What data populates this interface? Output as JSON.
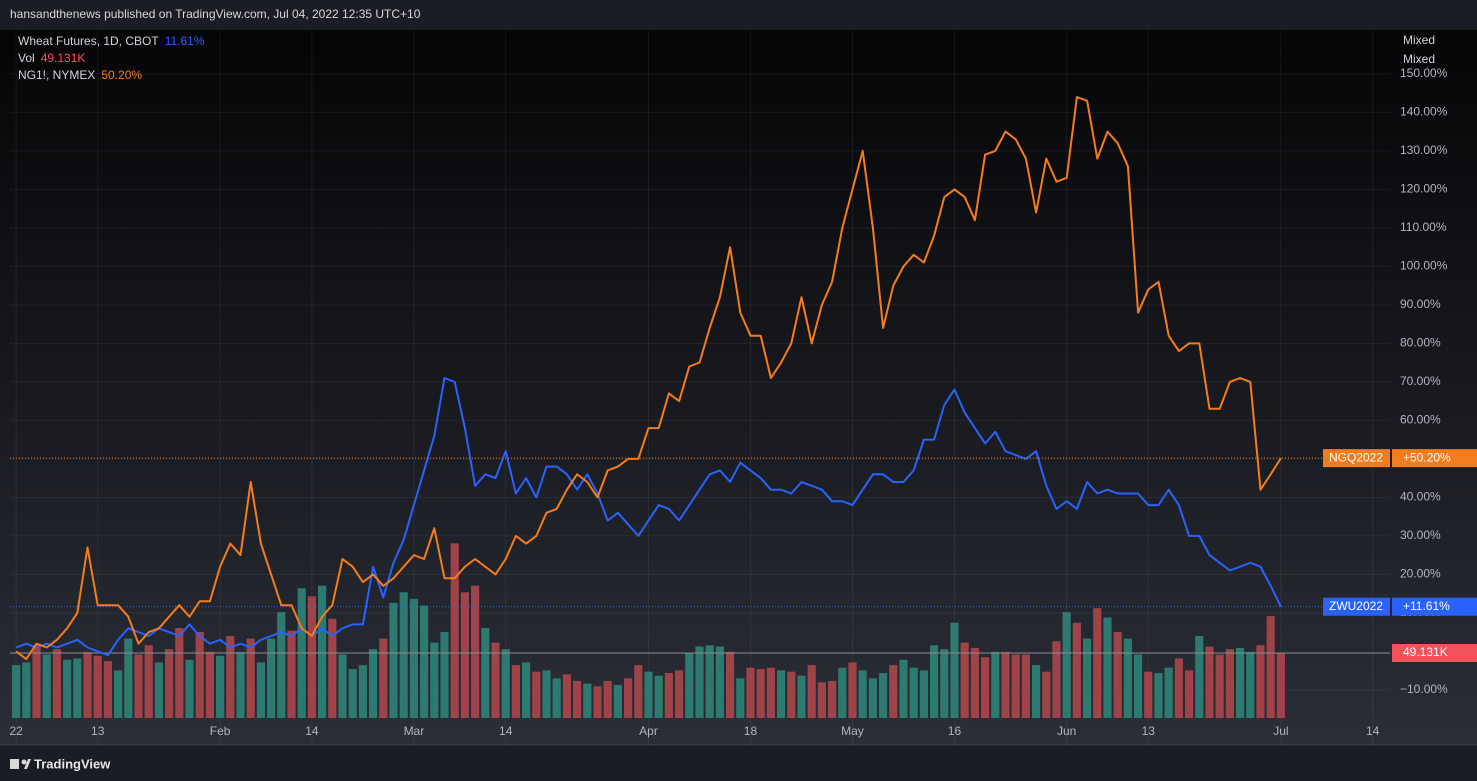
{
  "header": "hansandthenews published on TradingView.com, Jul 04, 2022 12:35 UTC+10",
  "footer": "TradingView",
  "chart_data": {
    "type": "line",
    "scale_labels": [
      "Mixed",
      "Mixed"
    ],
    "x": [
      0,
      1,
      2,
      3,
      4,
      5,
      6,
      7,
      8,
      9,
      10,
      11,
      12,
      13,
      14,
      15,
      16,
      17,
      18,
      19,
      20,
      21,
      22,
      23,
      24,
      25,
      26,
      27,
      28,
      29,
      30,
      31,
      32,
      33,
      34,
      35,
      36,
      37,
      38,
      39,
      40,
      41,
      42,
      43,
      44,
      45,
      46,
      47,
      48,
      49,
      50,
      51,
      52,
      53,
      54,
      55,
      56,
      57,
      58,
      59,
      60,
      61,
      62,
      63,
      64,
      65,
      66,
      67,
      68,
      69,
      70,
      71,
      72,
      73,
      74,
      75,
      76,
      77,
      78,
      79,
      80,
      81,
      82,
      83,
      84,
      85,
      86,
      87,
      88,
      89,
      90,
      91,
      92,
      93,
      94,
      95,
      96,
      97,
      98,
      99,
      100,
      101,
      102,
      103,
      104,
      105,
      106,
      107,
      108,
      109,
      110,
      111,
      112,
      113,
      114,
      115,
      116,
      117,
      118,
      119,
      120,
      121,
      122,
      123,
      124
    ],
    "xlim": [
      -0.6,
      134.7
    ],
    "xticks": [
      {
        "value": 0,
        "label": "22"
      },
      {
        "value": 8,
        "label": "13"
      },
      {
        "value": 20,
        "label": "Feb"
      },
      {
        "value": 29,
        "label": "14"
      },
      {
        "value": 39,
        "label": "Mar"
      },
      {
        "value": 48,
        "label": "14"
      },
      {
        "value": 62,
        "label": "Apr"
      },
      {
        "value": 72,
        "label": "18"
      },
      {
        "value": 82,
        "label": "May"
      },
      {
        "value": 92,
        "label": "16"
      },
      {
        "value": 103,
        "label": "Jun"
      },
      {
        "value": 111,
        "label": "13"
      },
      {
        "value": 124,
        "label": "Jul"
      },
      {
        "value": 133,
        "label": "14"
      }
    ],
    "ylim": [
      -17.3,
      161.4
    ],
    "yticks": [
      {
        "value": -10,
        "label": "−10.00%"
      },
      {
        "value": 10,
        "label": "10.00%"
      },
      {
        "value": 20,
        "label": "20.00%"
      },
      {
        "value": 30,
        "label": "30.00%"
      },
      {
        "value": 40,
        "label": "40.00%"
      },
      {
        "value": 50,
        "label": "50.00%"
      },
      {
        "value": 60,
        "label": "60.00%"
      },
      {
        "value": 70,
        "label": "70.00%"
      },
      {
        "value": 80,
        "label": "80.00%"
      },
      {
        "value": 90,
        "label": "90.00%"
      },
      {
        "value": 100,
        "label": "100.00%"
      },
      {
        "value": 110,
        "label": "110.00%"
      },
      {
        "value": 120,
        "label": "120.00%"
      },
      {
        "value": 130,
        "label": "130.00%"
      },
      {
        "value": 140,
        "label": "140.00%"
      },
      {
        "value": 150,
        "label": "150.00%"
      }
    ],
    "grid": true,
    "vol_ylim": [
      0,
      520
    ],
    "series": [
      {
        "name": "Wheat Futures, 1D, CBOT",
        "color": "#2962ff",
        "last_label": "11.61%",
        "badge": "ZWU2022",
        "badge_value": "+11.61%",
        "values": [
          1,
          2,
          1,
          2,
          1,
          2,
          3,
          1,
          0,
          -1,
          3,
          6,
          5,
          4,
          6,
          5,
          4,
          7,
          4,
          2,
          3,
          1,
          2,
          1,
          3,
          4,
          5,
          4,
          6,
          4,
          6,
          4,
          6,
          7,
          7,
          22,
          14,
          23,
          29,
          38,
          47,
          56,
          71,
          70,
          58,
          43,
          46,
          45,
          52,
          41,
          45,
          40,
          48,
          48,
          46,
          42,
          46,
          41,
          34,
          36,
          33,
          30,
          34,
          38,
          37,
          34,
          38,
          42,
          46,
          47,
          44,
          49,
          47,
          45,
          42,
          42,
          41,
          44,
          43,
          42,
          39,
          39,
          38,
          42,
          46,
          46,
          44,
          44,
          47,
          55,
          55,
          64,
          68,
          62,
          58,
          54,
          57,
          52,
          51,
          50,
          52,
          43,
          37,
          39,
          37,
          44,
          41,
          42,
          41,
          41,
          41,
          38,
          38,
          42,
          38,
          30,
          30,
          25,
          23,
          21,
          22,
          23,
          22,
          17,
          11.61
        ]
      },
      {
        "name": "NG1!, NYMEX",
        "color": "#f57c1a",
        "last_label": "50.20%",
        "badge": "NGQ2022",
        "badge_value": "+50.20%",
        "values": [
          0,
          -2,
          2,
          1,
          3,
          6,
          10,
          27,
          12,
          12,
          12,
          9,
          2,
          5,
          6,
          9,
          12,
          9,
          13,
          13,
          22,
          28,
          25,
          44,
          28,
          20,
          12,
          12,
          6,
          4,
          9,
          12,
          24,
          22,
          18,
          20,
          17,
          19,
          22,
          25,
          24,
          32,
          19,
          19,
          22,
          24,
          22,
          20,
          24,
          30,
          28,
          30,
          36,
          37,
          42,
          46,
          44,
          40,
          47,
          48,
          50,
          50,
          58,
          58,
          67,
          65,
          74,
          75,
          84,
          92,
          105,
          88,
          82,
          82,
          71,
          75,
          80,
          92,
          80,
          90,
          96,
          110,
          120,
          130,
          110,
          84,
          95,
          100,
          103,
          101,
          108,
          118,
          120,
          118,
          112,
          129,
          130,
          135,
          133,
          128,
          114,
          128,
          122,
          123,
          144,
          143,
          128,
          135,
          132,
          126,
          88,
          94,
          96,
          82,
          78,
          80,
          80,
          63,
          63,
          70,
          71,
          70,
          42,
          46,
          50.2
        ]
      },
      {
        "name": "Vol",
        "type": "volume",
        "color": "#f0545a",
        "up_color": "#2d7a70",
        "down_color": "#9e4448",
        "last_label": "49.131K",
        "badge_value": "49.131K",
        "values": [
          40,
          42,
          55,
          48,
          52,
          44,
          45,
          50,
          47,
          43,
          36,
          60,
          48,
          55,
          42,
          52,
          68,
          44,
          65,
          50,
          47,
          62,
          50,
          60,
          42,
          60,
          80,
          66,
          98,
          92,
          100,
          75,
          48,
          37,
          40,
          52,
          60,
          87,
          95,
          90,
          85,
          57,
          65,
          132,
          95,
          100,
          68,
          57,
          52,
          40,
          42,
          35,
          36,
          30,
          33,
          28,
          26,
          24,
          28,
          25,
          30,
          40,
          35,
          32,
          34,
          36,
          49,
          54,
          55,
          54,
          50,
          30,
          38,
          37,
          38,
          36,
          35,
          32,
          40,
          27,
          28,
          38,
          42,
          36,
          30,
          34,
          40,
          44,
          38,
          36,
          55,
          52,
          72,
          57,
          53,
          46,
          50,
          50,
          48,
          48,
          40,
          35,
          58,
          80,
          72,
          60,
          83,
          76,
          65,
          60,
          48,
          35,
          34,
          38,
          45,
          36,
          62,
          54,
          48,
          52,
          53,
          50,
          55,
          77,
          49.131
        ]
      }
    ]
  }
}
